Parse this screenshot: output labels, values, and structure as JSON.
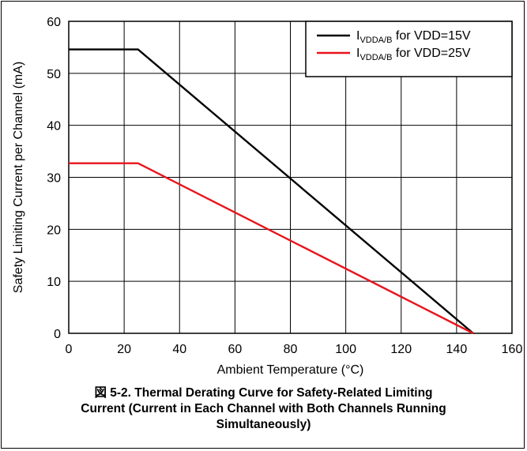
{
  "chart_data": {
    "type": "line",
    "caption": {
      "line1": "図 5-2. Thermal Derating Curve for Safety-Related Limiting",
      "line2": "Current (Current in Each Channel with Both Channels Running",
      "line3": "Simultaneously)"
    },
    "xlabel": "Ambient Temperature (°C)",
    "ylabel": "Safety Limiting Current per Channel (mA)",
    "xlim": [
      0,
      160
    ],
    "ylim": [
      0,
      60
    ],
    "xticks": [
      "0",
      "20",
      "40",
      "60",
      "80",
      "100",
      "120",
      "140",
      "160"
    ],
    "yticks": [
      "0",
      "10",
      "20",
      "30",
      "40",
      "50",
      "60"
    ],
    "grid": true,
    "legend_position": "top-right",
    "series": [
      {
        "legend_main": "I",
        "legend_sub": "VDDA/B",
        "legend_rest": " for VDD=15V",
        "color": "#000000",
        "x": [
          0,
          25,
          146
        ],
        "y": [
          54.6,
          54.6,
          0
        ]
      },
      {
        "legend_main": "I",
        "legend_sub": "VDDA/B",
        "legend_rest": " for VDD=25V",
        "color": "#e8141b",
        "x": [
          0,
          25,
          146
        ],
        "y": [
          32.7,
          32.7,
          0
        ]
      }
    ]
  }
}
